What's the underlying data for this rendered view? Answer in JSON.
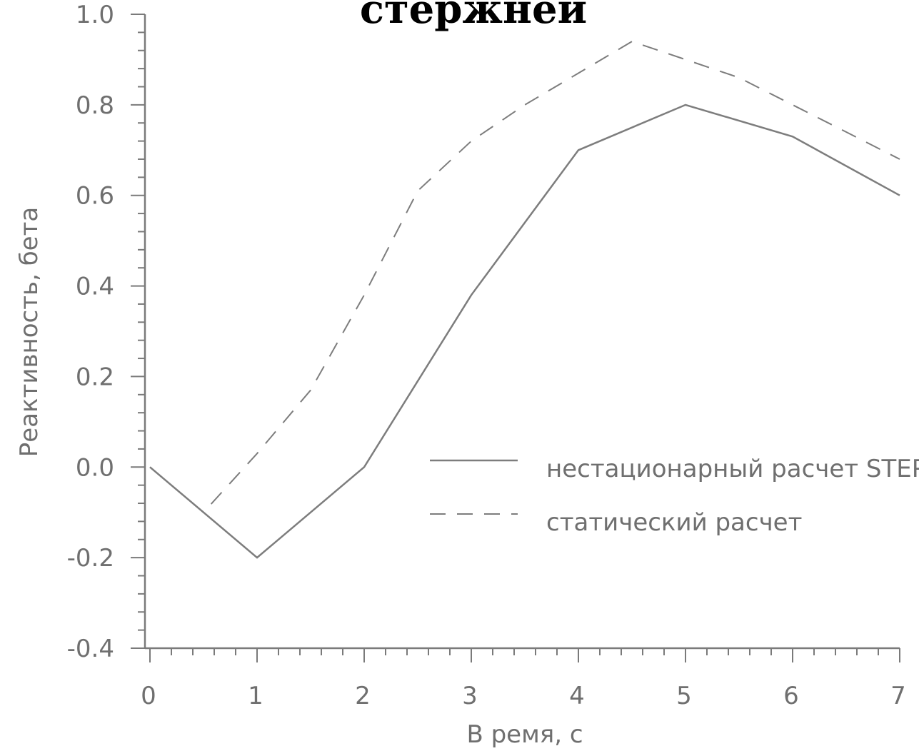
{
  "chart_data": {
    "type": "line",
    "title": "стержней",
    "xlabel": "В ремя, с",
    "ylabel": "Реактивность, бета",
    "xlim": [
      0,
      7
    ],
    "ylim": [
      -0.4,
      1.0
    ],
    "x_ticks": [
      "0",
      "1",
      "2",
      "3",
      "4",
      "5",
      "6",
      "7"
    ],
    "y_ticks": [
      "1.0",
      "0.8",
      "0.6",
      "0.4",
      "0.2",
      "0.0",
      "-0.2",
      "-0.4"
    ],
    "grid": false,
    "legend_position": "center-right",
    "series": [
      {
        "name": "нестационарный расчет STEPAN",
        "style": "solid",
        "color": "#7d7d7d",
        "x": [
          0,
          1,
          2,
          3,
          4,
          5,
          6,
          7
        ],
        "y": [
          0.0,
          -0.2,
          0.0,
          0.38,
          0.7,
          0.8,
          0.73,
          0.6
        ]
      },
      {
        "name": "статический расчет",
        "style": "dashed",
        "color": "#7d7d7d",
        "x": [
          0,
          0.5,
          1,
          1.5,
          2,
          2.5,
          3,
          3.5,
          4,
          4.5,
          5,
          5.5,
          6,
          6.5,
          7
        ],
        "y": [
          0.0,
          -0.1,
          0.03,
          0.17,
          0.38,
          0.61,
          0.72,
          0.8,
          0.87,
          0.94,
          0.9,
          0.86,
          0.8,
          0.74,
          0.68
        ]
      }
    ]
  }
}
